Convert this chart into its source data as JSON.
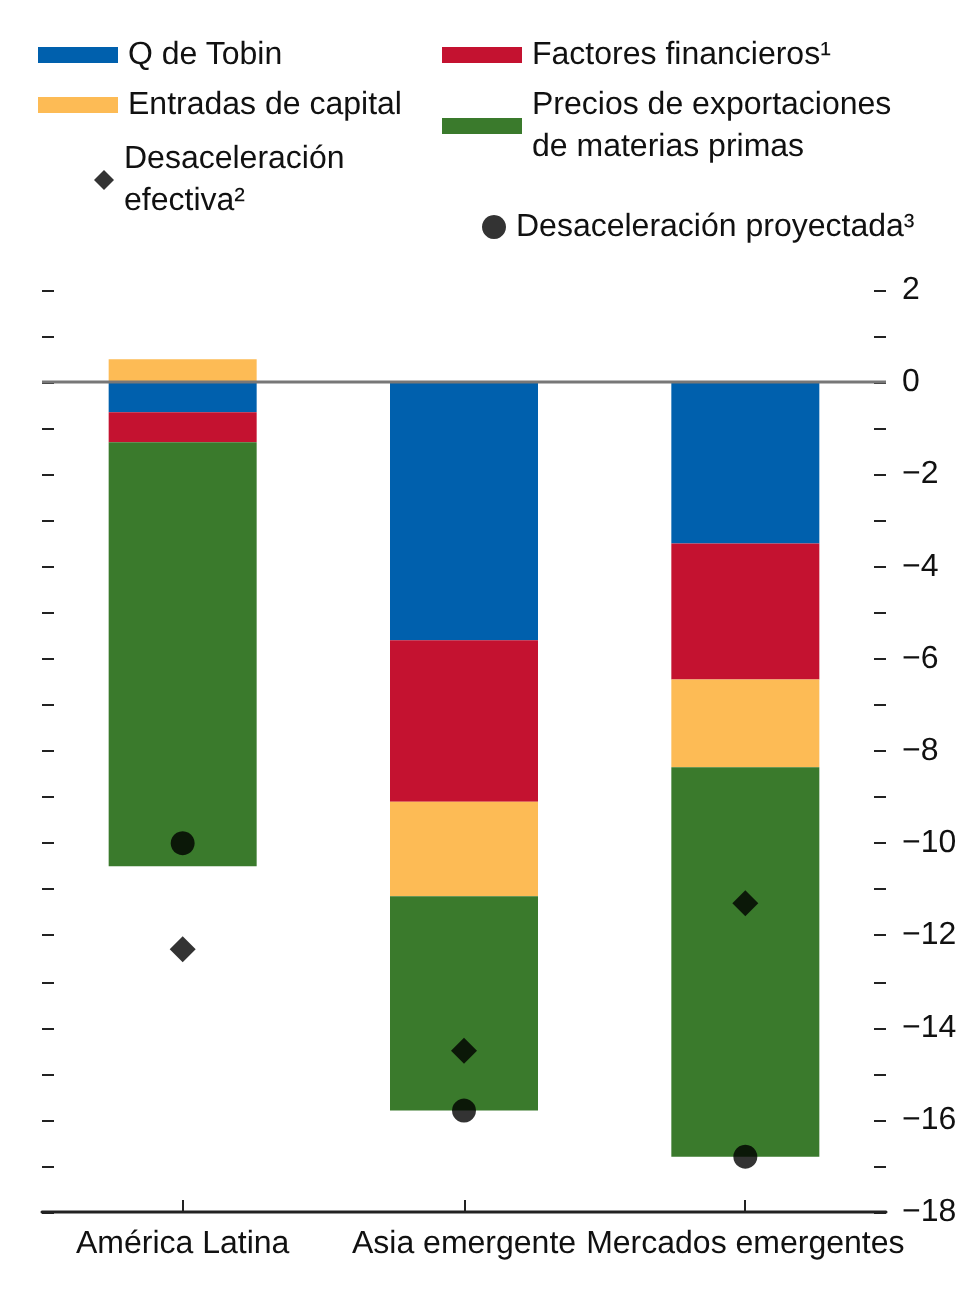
{
  "chart_data": {
    "type": "bar",
    "stacked": true,
    "categories": [
      "América Latina",
      "Asia emergente",
      "Mercados emergentes"
    ],
    "series": [
      {
        "name": "Q de Tobin",
        "color": "#0060ad",
        "values": [
          -0.65,
          -5.6,
          -3.5
        ]
      },
      {
        "name": "Factores financieros¹",
        "color": "#c41230",
        "values": [
          -0.65,
          -3.5,
          -2.95
        ]
      },
      {
        "name": "Entradas de capital",
        "color": "#fdbb55",
        "values": [
          0.5,
          -2.05,
          -1.9
        ]
      },
      {
        "name": "Precios de exportaciones de materias primas",
        "color": "#3a7a2c",
        "values": [
          -9.2,
          -4.65,
          -8.45
        ]
      },
      {
        "name": "Desaceleración efectiva²",
        "type": "scatter",
        "marker": "diamond",
        "color": "#000000",
        "x": [
          "América Latina",
          "Asia emergente",
          "Mercados emergentes"
        ],
        "values": [
          -12.3,
          -14.5,
          -11.3
        ]
      },
      {
        "name": "Desaceleración proyectada³",
        "type": "scatter",
        "marker": "circle",
        "color": "#000000",
        "x": [
          "América Latina",
          "Asia emergente",
          "Mercados emergentes"
        ],
        "values": [
          -10.0,
          -15.8,
          -16.8
        ]
      }
    ],
    "ylim": [
      -18,
      2
    ],
    "yticks": [
      {
        "value": -18,
        "label": "−18"
      },
      {
        "value": -17,
        "label": null
      },
      {
        "value": -16,
        "label": "−16"
      },
      {
        "value": -15,
        "label": null
      },
      {
        "value": -14,
        "label": "−14"
      },
      {
        "value": -13,
        "label": null
      },
      {
        "value": -12,
        "label": "−12"
      },
      {
        "value": -11,
        "label": null
      },
      {
        "value": -10,
        "label": "−10"
      },
      {
        "value": -9,
        "label": null
      },
      {
        "value": -8,
        "label": "−8"
      },
      {
        "value": -7,
        "label": null
      },
      {
        "value": -6,
        "label": "−6"
      },
      {
        "value": -5,
        "label": null
      },
      {
        "value": -4,
        "label": "−4"
      },
      {
        "value": -3,
        "label": null
      },
      {
        "value": -2,
        "label": "−2"
      },
      {
        "value": -1,
        "label": null
      },
      0,
      {
        "value": 1,
        "label": null
      },
      2
    ],
    "ref_lines": [
      {
        "axis": "y",
        "value": 0,
        "color": "#777777"
      }
    ],
    "grid": false,
    "legend": "top"
  }
}
